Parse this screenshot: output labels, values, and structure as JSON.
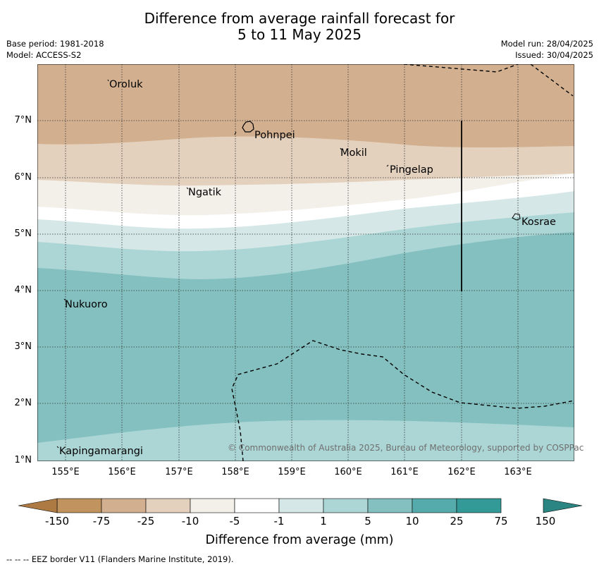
{
  "title": {
    "line1": "Difference from average rainfall forecast for",
    "line2": "5 to 11 May 2025"
  },
  "meta": {
    "base_period": "Base period: 1981-2018",
    "model": "Model: ACCESS-S2",
    "model_run": "Model run: 28/04/2025",
    "issued": "Issued: 30/04/2025"
  },
  "map": {
    "lat_ticks": [
      "7°N",
      "6°N",
      "5°N",
      "4°N",
      "3°N",
      "2°N",
      "1°N"
    ],
    "lon_ticks": [
      "155°E",
      "156°E",
      "157°E",
      "158°E",
      "159°E",
      "160°E",
      "161°E",
      "162°E",
      "163°E"
    ],
    "places": [
      "Oroluk",
      "Pohnpei",
      "Mokil",
      "Pingelap",
      "Ngatik",
      "Kosrae",
      "Nukuoro",
      "Kapingamarangi"
    ],
    "copyright": "© Commonwealth of Australia 2025, Bureau of Meteorology, supported by COSPPac"
  },
  "colorbar": {
    "labels": [
      "-150",
      "-75",
      "-25",
      "-10",
      "-5",
      "-1",
      "1",
      "5",
      "10",
      "25",
      "75",
      "150"
    ],
    "colors": [
      "#ae7a44",
      "#c0935f",
      "#d2b08f",
      "#e3d0bd",
      "#f3efe9",
      "#ffffff",
      "#d5e8e7",
      "#acd6d5",
      "#83c0bf",
      "#55abab",
      "#339a98",
      "#2a8583"
    ],
    "title": "Difference from average (mm)"
  },
  "footnote": "--  --  -- EEZ border V11 (Flanders Marine Institute, 2019)."
}
